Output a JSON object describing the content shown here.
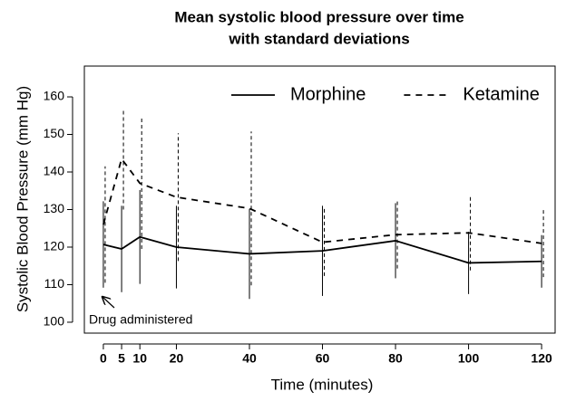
{
  "chart_data": {
    "type": "line",
    "title": "Mean systolic blood pressure over time",
    "subtitle": "with standard deviations",
    "x_label": "Time (minutes)",
    "y_label": "Systolic Blood Pressure (mm Hg)",
    "x": [
      0,
      5,
      10,
      20,
      40,
      60,
      80,
      100,
      120
    ],
    "series": [
      {
        "name": "Morphine",
        "color": "#000000",
        "line_style": "solid",
        "values": [
          120.7,
          119.5,
          122.7,
          120,
          118.2,
          119,
          121.7,
          115.8,
          116.2
        ],
        "errors": [
          11.5,
          11.5,
          12.5,
          11,
          12,
          12,
          10,
          8.3,
          7
        ]
      },
      {
        "name": "Ketamine",
        "color": "#000000",
        "line_style": "dashed",
        "values": [
          126,
          143.5,
          137,
          133.3,
          130.3,
          121.3,
          123.3,
          123.8,
          121
        ],
        "errors": [
          15.5,
          13.5,
          17.5,
          17,
          20.5,
          9,
          9,
          10,
          9
        ]
      }
    ],
    "xlim": [
      -5.2,
      123.7
    ],
    "xticks": [
      0,
      5,
      10,
      20,
      40,
      60,
      80,
      100,
      120
    ],
    "ylim": [
      97.1,
      168.2
    ],
    "yticks": [
      100,
      110,
      120,
      130,
      140,
      150,
      160
    ],
    "grid": false,
    "legend_position": "top right",
    "annotation": "Drug administered"
  }
}
